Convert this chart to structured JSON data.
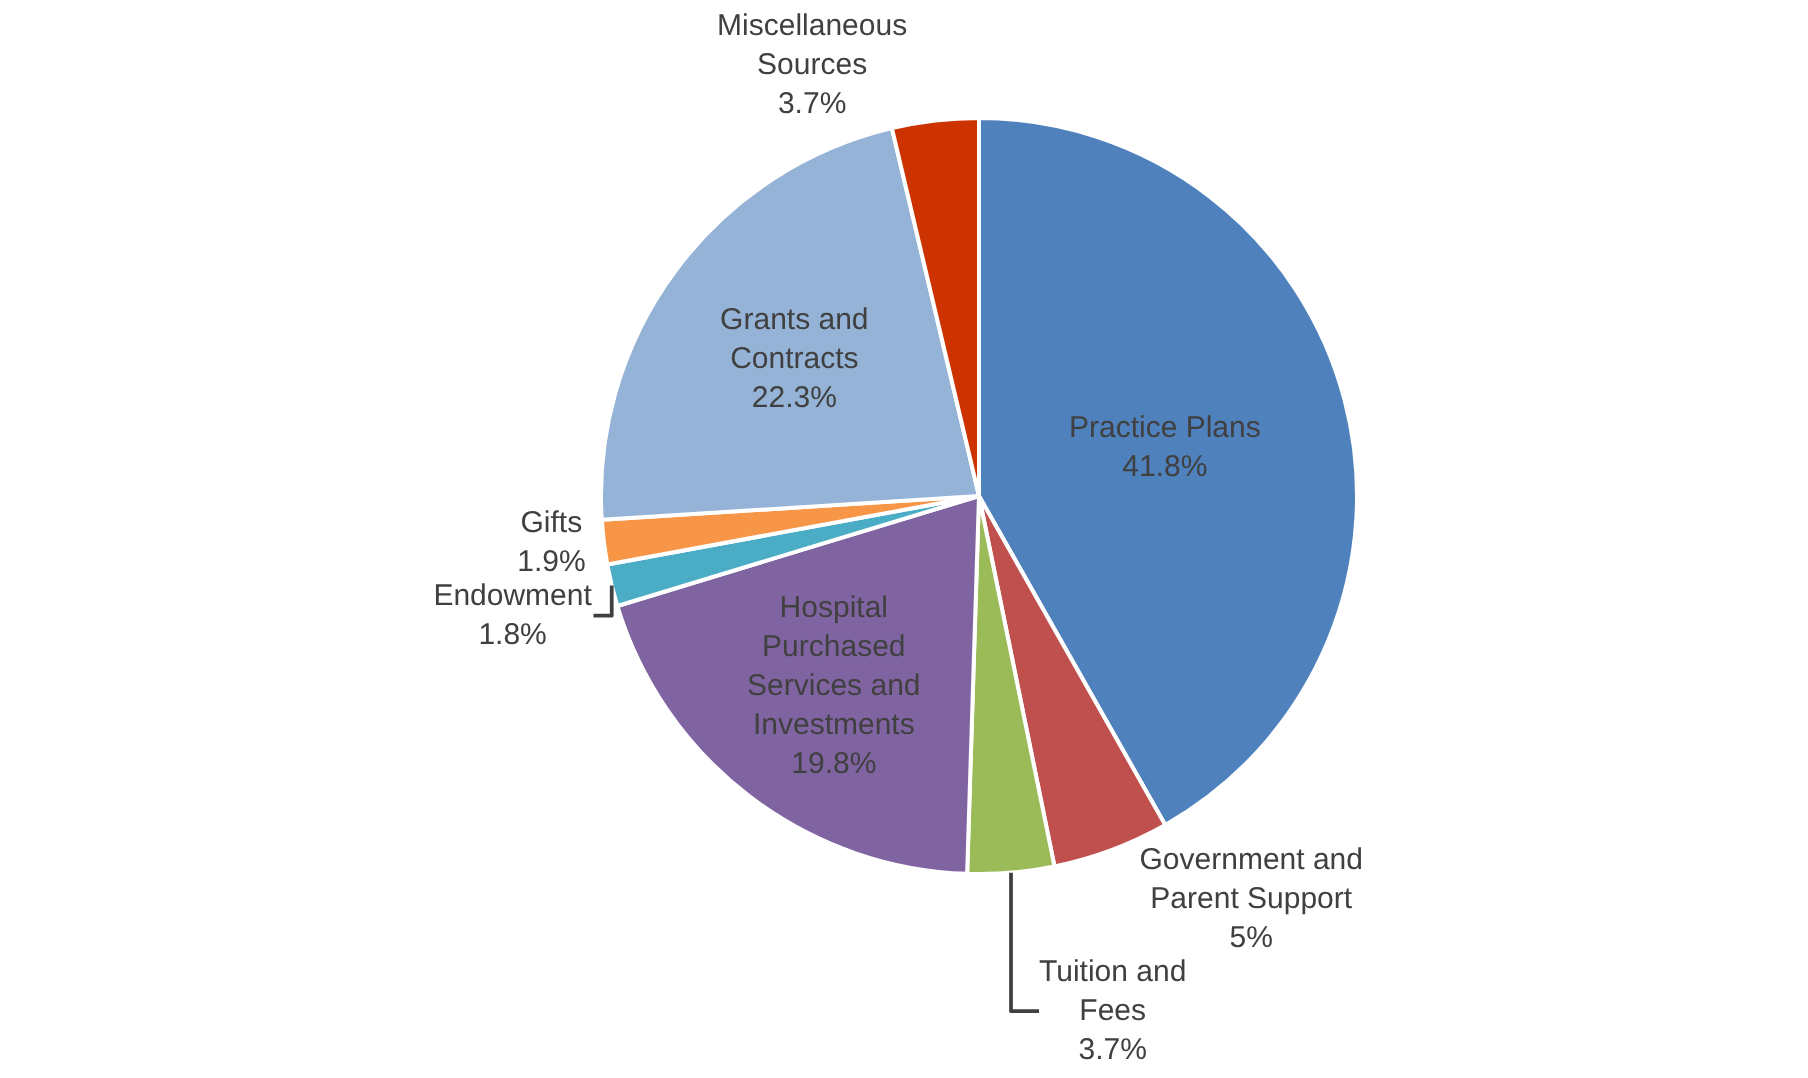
{
  "chart_data": {
    "type": "pie",
    "categories": [
      "Practice Plans",
      "Government and Parent Support",
      "Tuition and Fees",
      "Hospital Purchased Services and Investments",
      "Endowment",
      "Gifts",
      "Grants and Contracts",
      "Miscellaneous Sources"
    ],
    "values": [
      41.8,
      5,
      3.7,
      19.8,
      1.8,
      1.9,
      22.3,
      3.7
    ],
    "value_labels": [
      "41.8%",
      "5%",
      "3.7%",
      "19.8%",
      "1.8%",
      "1.9%",
      "22.3%",
      "3.7%"
    ],
    "colors": [
      "#4f81bd",
      "#c0504d",
      "#9bbb59",
      "#8064a2",
      "#4bacc6",
      "#f79646",
      "#95b3d7",
      "#cc3300"
    ],
    "legend": false
  }
}
